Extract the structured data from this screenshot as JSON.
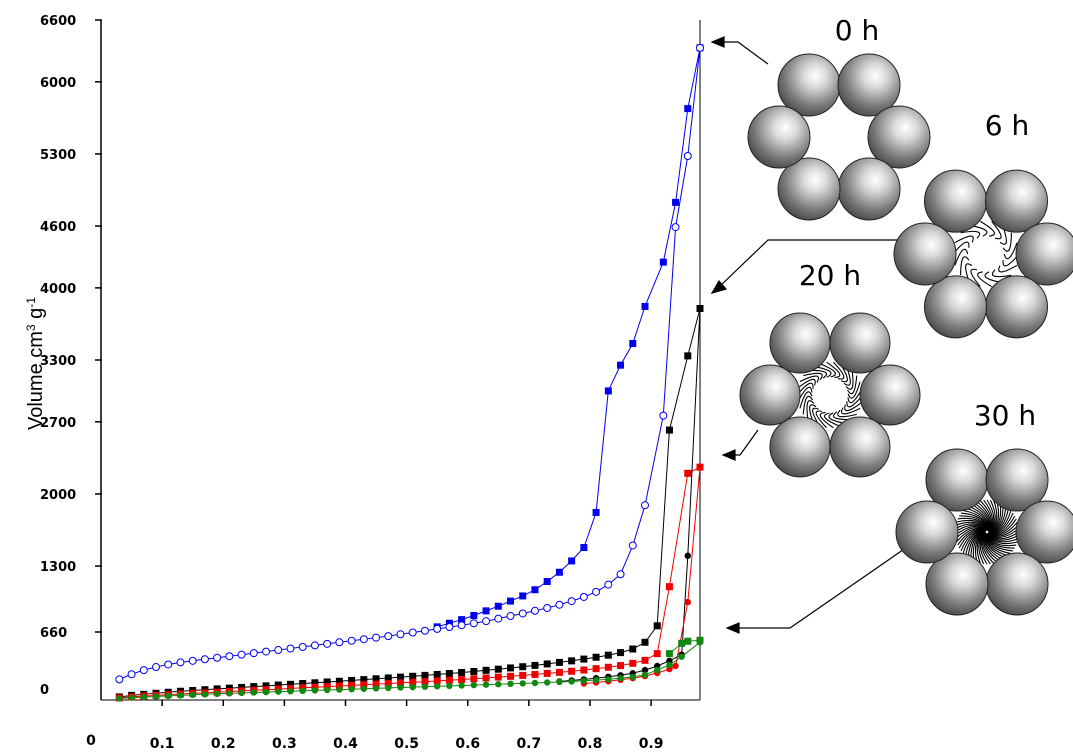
{
  "chart_data": {
    "type": "line",
    "ylabel_main": "Volume cm",
    "ylabel_sup1": "3",
    "ylabel_mid": " g",
    "ylabel_sup2": "-1",
    "xlabel": "",
    "y_ticks": [
      "0",
      "660",
      "1300",
      "2000",
      "2700",
      "3300",
      "4000",
      "4600",
      "5300",
      "6000",
      "6600"
    ],
    "x_ticks": [
      "0",
      "0.1",
      "0.2",
      "0.3",
      "0.4",
      "0.5",
      "0.6",
      "0.7",
      "0.8",
      "0.9"
    ],
    "xlim": [
      0,
      0.98
    ],
    "ylim": [
      0,
      6600
    ],
    "series": [
      {
        "color": "#0000ee",
        "marker": "square",
        "points": [
          [
            0.55,
            710
          ],
          [
            0.57,
            745
          ],
          [
            0.59,
            780
          ],
          [
            0.61,
            820
          ],
          [
            0.63,
            865
          ],
          [
            0.65,
            910
          ],
          [
            0.67,
            960
          ],
          [
            0.69,
            1010
          ],
          [
            0.71,
            1070
          ],
          [
            0.73,
            1150
          ],
          [
            0.75,
            1240
          ],
          [
            0.77,
            1350
          ],
          [
            0.79,
            1480
          ],
          [
            0.81,
            1820
          ],
          [
            0.83,
            3000
          ],
          [
            0.85,
            3250
          ],
          [
            0.87,
            3460
          ],
          [
            0.89,
            3820
          ],
          [
            0.92,
            4250
          ],
          [
            0.94,
            4830
          ],
          [
            0.96,
            5740
          ],
          [
            0.98,
            6330
          ]
        ]
      },
      {
        "color": "#0000ee",
        "marker": "circle-open",
        "points": [
          [
            0.03,
            200
          ],
          [
            0.05,
            250
          ],
          [
            0.07,
            290
          ],
          [
            0.09,
            320
          ],
          [
            0.11,
            345
          ],
          [
            0.13,
            365
          ],
          [
            0.15,
            380
          ],
          [
            0.17,
            395
          ],
          [
            0.19,
            410
          ],
          [
            0.21,
            425
          ],
          [
            0.23,
            440
          ],
          [
            0.25,
            455
          ],
          [
            0.27,
            470
          ],
          [
            0.29,
            485
          ],
          [
            0.31,
            500
          ],
          [
            0.33,
            515
          ],
          [
            0.35,
            530
          ],
          [
            0.37,
            545
          ],
          [
            0.39,
            560
          ],
          [
            0.41,
            575
          ],
          [
            0.43,
            590
          ],
          [
            0.45,
            605
          ],
          [
            0.47,
            620
          ],
          [
            0.49,
            638
          ],
          [
            0.51,
            655
          ],
          [
            0.53,
            672
          ],
          [
            0.55,
            690
          ],
          [
            0.57,
            708
          ],
          [
            0.59,
            726
          ],
          [
            0.61,
            745
          ],
          [
            0.63,
            765
          ],
          [
            0.65,
            790
          ],
          [
            0.67,
            815
          ],
          [
            0.69,
            840
          ],
          [
            0.71,
            866
          ],
          [
            0.73,
            893
          ],
          [
            0.75,
            925
          ],
          [
            0.77,
            960
          ],
          [
            0.79,
            1000
          ],
          [
            0.81,
            1050
          ],
          [
            0.83,
            1120
          ],
          [
            0.85,
            1220
          ],
          [
            0.87,
            1500
          ],
          [
            0.89,
            1890
          ],
          [
            0.92,
            2760
          ],
          [
            0.94,
            4590
          ],
          [
            0.96,
            5280
          ],
          [
            0.98,
            6330
          ]
        ]
      },
      {
        "color": "#000000",
        "marker": "square",
        "points": [
          [
            0.03,
            30
          ],
          [
            0.05,
            45
          ],
          [
            0.07,
            55
          ],
          [
            0.09,
            65
          ],
          [
            0.11,
            75
          ],
          [
            0.13,
            85
          ],
          [
            0.15,
            92
          ],
          [
            0.17,
            100
          ],
          [
            0.19,
            108
          ],
          [
            0.21,
            115
          ],
          [
            0.23,
            122
          ],
          [
            0.25,
            130
          ],
          [
            0.27,
            137
          ],
          [
            0.29,
            145
          ],
          [
            0.31,
            152
          ],
          [
            0.33,
            160
          ],
          [
            0.35,
            167
          ],
          [
            0.37,
            175
          ],
          [
            0.39,
            182
          ],
          [
            0.41,
            190
          ],
          [
            0.43,
            198
          ],
          [
            0.45,
            206
          ],
          [
            0.47,
            214
          ],
          [
            0.49,
            222
          ],
          [
            0.51,
            230
          ],
          [
            0.53,
            239
          ],
          [
            0.55,
            248
          ],
          [
            0.57,
            257
          ],
          [
            0.59,
            267
          ],
          [
            0.61,
            277
          ],
          [
            0.63,
            288
          ],
          [
            0.65,
            299
          ],
          [
            0.67,
            311
          ],
          [
            0.69,
            323
          ],
          [
            0.71,
            336
          ],
          [
            0.73,
            350
          ],
          [
            0.75,
            365
          ],
          [
            0.77,
            380
          ],
          [
            0.79,
            397
          ],
          [
            0.81,
            415
          ],
          [
            0.83,
            435
          ],
          [
            0.85,
            460
          ],
          [
            0.87,
            495
          ],
          [
            0.89,
            560
          ],
          [
            0.91,
            720
          ],
          [
            0.93,
            2620
          ],
          [
            0.96,
            3340
          ],
          [
            0.98,
            3800
          ]
        ]
      },
      {
        "color": "#ee0000",
        "marker": "square",
        "points": [
          [
            0.03,
            20
          ],
          [
            0.05,
            30
          ],
          [
            0.07,
            38
          ],
          [
            0.09,
            45
          ],
          [
            0.11,
            52
          ],
          [
            0.13,
            58
          ],
          [
            0.15,
            64
          ],
          [
            0.17,
            70
          ],
          [
            0.19,
            76
          ],
          [
            0.21,
            82
          ],
          [
            0.23,
            88
          ],
          [
            0.25,
            94
          ],
          [
            0.27,
            100
          ],
          [
            0.29,
            106
          ],
          [
            0.31,
            112
          ],
          [
            0.33,
            118
          ],
          [
            0.35,
            124
          ],
          [
            0.37,
            130
          ],
          [
            0.39,
            136
          ],
          [
            0.41,
            142
          ],
          [
            0.43,
            148
          ],
          [
            0.45,
            154
          ],
          [
            0.47,
            160
          ],
          [
            0.49,
            166
          ],
          [
            0.51,
            172
          ],
          [
            0.53,
            178
          ],
          [
            0.55,
            185
          ],
          [
            0.57,
            192
          ],
          [
            0.59,
            199
          ],
          [
            0.61,
            206
          ],
          [
            0.63,
            214
          ],
          [
            0.65,
            222
          ],
          [
            0.67,
            230
          ],
          [
            0.69,
            239
          ],
          [
            0.71,
            248
          ],
          [
            0.73,
            258
          ],
          [
            0.75,
            268
          ],
          [
            0.77,
            279
          ],
          [
            0.79,
            291
          ],
          [
            0.81,
            304
          ],
          [
            0.83,
            318
          ],
          [
            0.85,
            334
          ],
          [
            0.87,
            356
          ],
          [
            0.89,
            385
          ],
          [
            0.91,
            450
          ],
          [
            0.93,
            1100
          ],
          [
            0.96,
            2200
          ],
          [
            0.98,
            2260
          ]
        ]
      },
      {
        "color": "#000000",
        "marker": "circle",
        "points": [
          [
            0.75,
            180
          ],
          [
            0.77,
            190
          ],
          [
            0.79,
            200
          ],
          [
            0.81,
            212
          ],
          [
            0.83,
            225
          ],
          [
            0.85,
            240
          ],
          [
            0.87,
            260
          ],
          [
            0.89,
            290
          ],
          [
            0.91,
            330
          ],
          [
            0.93,
            380
          ],
          [
            0.95,
            440
          ],
          [
            0.96,
            1400
          ],
          [
            0.98,
            3800
          ]
        ]
      },
      {
        "color": "#ee0000",
        "marker": "circle",
        "points": [
          [
            0.79,
            160
          ],
          [
            0.81,
            170
          ],
          [
            0.83,
            182
          ],
          [
            0.85,
            196
          ],
          [
            0.87,
            212
          ],
          [
            0.89,
            232
          ],
          [
            0.91,
            262
          ],
          [
            0.93,
            300
          ],
          [
            0.94,
            330
          ],
          [
            0.96,
            950
          ],
          [
            0.98,
            2260
          ]
        ]
      },
      {
        "color": "#118811",
        "marker": "circle",
        "points": [
          [
            0.03,
            15
          ],
          [
            0.05,
            22
          ],
          [
            0.07,
            28
          ],
          [
            0.09,
            34
          ],
          [
            0.11,
            40
          ],
          [
            0.13,
            45
          ],
          [
            0.15,
            50
          ],
          [
            0.17,
            55
          ],
          [
            0.19,
            60
          ],
          [
            0.21,
            65
          ],
          [
            0.23,
            69
          ],
          [
            0.25,
            73
          ],
          [
            0.27,
            77
          ],
          [
            0.29,
            81
          ],
          [
            0.31,
            85
          ],
          [
            0.33,
            89
          ],
          [
            0.35,
            93
          ],
          [
            0.37,
            97
          ],
          [
            0.39,
            101
          ],
          [
            0.41,
            105
          ],
          [
            0.43,
            109
          ],
          [
            0.45,
            113
          ],
          [
            0.47,
            117
          ],
          [
            0.49,
            121
          ],
          [
            0.51,
            125
          ],
          [
            0.53,
            129
          ],
          [
            0.55,
            133
          ],
          [
            0.57,
            137
          ],
          [
            0.59,
            141
          ],
          [
            0.61,
            145
          ],
          [
            0.63,
            149
          ],
          [
            0.65,
            153
          ],
          [
            0.67,
            157
          ],
          [
            0.69,
            161
          ],
          [
            0.71,
            165
          ],
          [
            0.73,
            170
          ],
          [
            0.75,
            175
          ],
          [
            0.77,
            180
          ],
          [
            0.79,
            186
          ],
          [
            0.81,
            193
          ],
          [
            0.83,
            201
          ],
          [
            0.85,
            211
          ],
          [
            0.87,
            224
          ],
          [
            0.89,
            245
          ],
          [
            0.91,
            290
          ],
          [
            0.93,
            340
          ],
          [
            0.95,
            420
          ],
          [
            0.98,
            560
          ]
        ]
      },
      {
        "color": "#118811",
        "marker": "square",
        "points": [
          [
            0.93,
            450
          ],
          [
            0.95,
            550
          ],
          [
            0.96,
            570
          ],
          [
            0.98,
            580
          ]
        ]
      }
    ]
  },
  "schematics": [
    {
      "label": "0 h"
    },
    {
      "label": "6 h"
    },
    {
      "label": "20 h"
    },
    {
      "label": "30 h"
    }
  ]
}
